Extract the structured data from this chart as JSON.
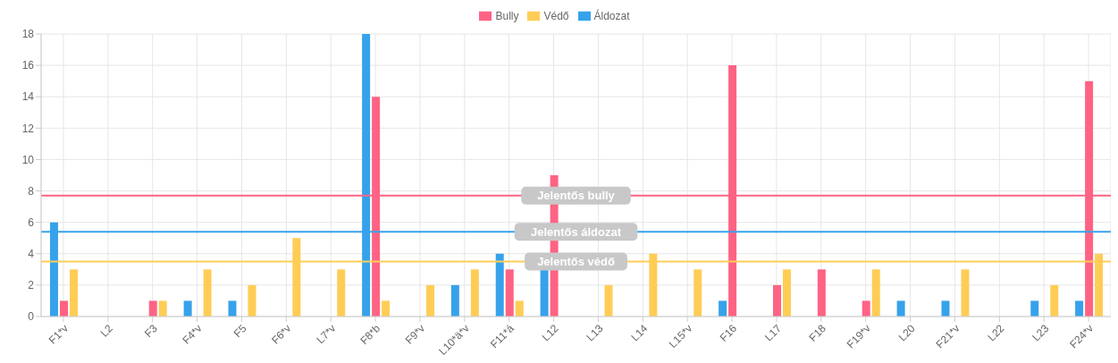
{
  "chart_data": {
    "type": "bar",
    "categories": [
      "F1*v",
      "L2",
      "F3",
      "F4*v",
      "F5",
      "F6*v",
      "L7*v",
      "F8*b",
      "F9*v",
      "L10*ä*v",
      "F11*á",
      "L12",
      "L13",
      "L14",
      "L15*v",
      "F16",
      "L17",
      "F18",
      "F19*v",
      "L20",
      "F21*v",
      "L22",
      "L23",
      "F24*v"
    ],
    "series": [
      {
        "name": "Áldozat",
        "color": "#36a2eb",
        "values": [
          6,
          0,
          0,
          1,
          1,
          0,
          0,
          18,
          0,
          2,
          4,
          3,
          0,
          0,
          0,
          1,
          0,
          0,
          0,
          1,
          1,
          0,
          1,
          1
        ]
      },
      {
        "name": "Bully",
        "color": "#ff6384",
        "values": [
          1,
          0,
          1,
          0,
          0,
          0,
          0,
          14,
          0,
          0,
          3,
          9,
          0,
          0,
          0,
          16,
          2,
          3,
          1,
          0,
          0,
          0,
          0,
          15
        ]
      },
      {
        "name": "Védő",
        "color": "#ffcd56",
        "values": [
          3,
          0,
          1,
          3,
          2,
          5,
          3,
          1,
          2,
          3,
          1,
          0,
          2,
          4,
          3,
          0,
          3,
          0,
          3,
          0,
          3,
          0,
          2,
          4
        ]
      }
    ],
    "ylim": [
      0,
      18
    ],
    "yticks": [
      0,
      2,
      4,
      6,
      8,
      10,
      12,
      14,
      16,
      18
    ],
    "grid": true,
    "legend": "top",
    "ref_lines": [
      {
        "axis": "y",
        "value": 7.7,
        "label": "Jelentős bully",
        "color": "#ff6384"
      },
      {
        "axis": "y",
        "value": 5.4,
        "label": "Jelentős áldozat",
        "color": "#36a2eb"
      },
      {
        "axis": "y",
        "value": 3.5,
        "label": "Jelentős védő",
        "color": "#ffcd56"
      }
    ]
  }
}
